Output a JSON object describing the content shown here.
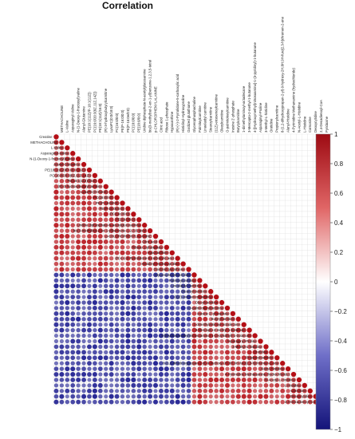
{
  "chart_data": {
    "type": "heatmap",
    "title": "Correlation",
    "layout": "lower-triangle",
    "variables": [
      "Creatine",
      "METHACHOLINE",
      "L-Valine",
      "Asparaginyl-Valine",
      "N-(1-Deoxy-1-fructosyl)valine",
      "Alanyl-Glutamine",
      "PE(18:1(11Z)/P-18:1(11Z))",
      "PC(16:0/20:3(8Z,11Z,14Z))",
      "PE(18:1(11Z)/16:0)",
      "(R)-3-hydroxybutyrylcarnitine",
      "LysoPC(0:0/18:0)",
      "PC(16:0/0:0)",
      "PE(P-16:0/0:0)",
      "PE(P-16:0e/0:0)",
      "PC(18:0/0:0)",
      "PE(18:0/0:0)",
      "Uridine diphosphate-N-acetylglucosamine",
      "bis(3-methylbut-2-en-1-yl)benzene-1,2,3,5-tetrol",
      "p-CHLOROPHENYLALANINE",
      "Citric acid",
      "Ribose 1-phosphate",
      "Hypoxanthine",
      "(R)-(+)-2-Pyrrolidone-5-carboxylic acid",
      "Histidinyl-Hydroxyproline",
      "Oxidized glutathione",
      "Glycerophosphocholine",
      "Palmitoylcarnitine",
      "Linoelaidyl carnitine",
      "Stearoylcarnitine",
      "(11Z)-eicosenoylcarnitine",
      "Oleoylcarnitine",
      "O-palmitoleoylcarnitine",
      "Inosine 2'-phosphate",
      "Butyrylcarnitine",
      "1-dimethylarsinoyl-octadecane",
      "3-Mercapto-2-methyl-1-butanone",
      "4-[(Hydroxymethyl)nitrosoamino]-1-(3-pyridinyl)-1-butanone",
      "Asparaginyl-Proline",
      "3-Methyl-L-histidine",
      "Orotidine",
      "Propionylcarnitine",
      "8-(1,2-dihydroxypropan-2-yl)-9-hydroxy-2H,8H,9H-furo[2,3-h]chromen-2-one",
      "Alanyl-Histidine",
      "4-Pyrimidine Methanamine (hydrochloride)",
      "N-Acetyl-L-Histidine",
      "L-Histidine",
      "Carnosine",
      "Deoxycytidine",
      "2,4-Decadienoyl-CoA"
    ],
    "top_labels": [
      "METHACHOLINE",
      "L-Valine",
      "Asparaginyl-Valine",
      "N-(1-Deoxy-1-fructosyl)valine",
      "Alanyl-Glutamine",
      "PE(18:1(11Z)/P-18:1(11Z))",
      "PC(16:0/20:3(8Z,11Z,14Z))",
      "PE(18:1(11Z)/16:0)",
      "(R)-3-hydroxybutyrylcarnitine",
      "LysoPC(0:0/18:0)",
      "PC(16:0/0:0)",
      "PE(P-16:0/0:0)",
      "PE(P-16:0e/0:0)",
      "PC(18:0/0:0)",
      "PE(18:0/0:0)",
      "Uridine diphosphate-N-acetylglucosamine",
      "bis(3-methylbut-2-en-1-yl)benzene-1,2,3,5-tetrol",
      "p-CHLOROPHENYLALANINE",
      "Citric acid",
      "Ribose 1-phosphate",
      "Hypoxanthine",
      "(R)-(+)-2-Pyrrolidone-5-carboxylic acid",
      "Histidinyl-Hydroxyproline",
      "Oxidized glutathione",
      "Glycerophosphocholine",
      "Palmitoylcarnitine",
      "Linoelaidyl carnitine",
      "Stearoylcarnitine",
      "(11Z)-eicosenoylcarnitine",
      "Oleoylcarnitine",
      "O-palmitoleoylcarnitine",
      "Inosine 2'-phosphate",
      "Butyrylcarnitine",
      "1-dimethylarsinoyl-octadecane",
      "3-Mercapto-2-methyl-1-butanone",
      "4-[(Hydroxymethyl)nitrosoamino]-1-(3-pyridinyl)-1-butanone",
      "Asparaginyl-Proline",
      "3-Methyl-L-histidine",
      "Orotidine",
      "Propionylcarnitine",
      "8-(1,2-dihydroxypropan-2-yl)-9-hydroxy-2H,8H,9H-furo[2,3-h]chromen-2-one",
      "Alanyl-Histidine",
      "4-Pyrimidine Methanamine (hydrochloride)",
      "N-Acetyl-L-Histidine",
      "L-Histidine",
      "Carnosine",
      "Deoxycytidine",
      "2,4-Decadienoyl-CoA",
      "Pyridoxine"
    ],
    "groups": [
      {
        "first": 0,
        "last": 24,
        "internal_correlation": 0.75
      },
      {
        "first": 25,
        "last": 48,
        "internal_correlation": 0.75
      }
    ],
    "between_group_correlation": -0.75,
    "diagonal_value": 1,
    "colorbar": {
      "min": -1,
      "max": 1,
      "ticks": [
        "1",
        "0.8",
        "0.6",
        "0.4",
        "0.2",
        "0",
        "−0.2",
        "−0.4",
        "−0.6",
        "−0.8",
        "−1"
      ],
      "colors": {
        "negative": "#1a1a8c",
        "zero": "#ffffff",
        "positive": "#c0141a"
      }
    }
  }
}
